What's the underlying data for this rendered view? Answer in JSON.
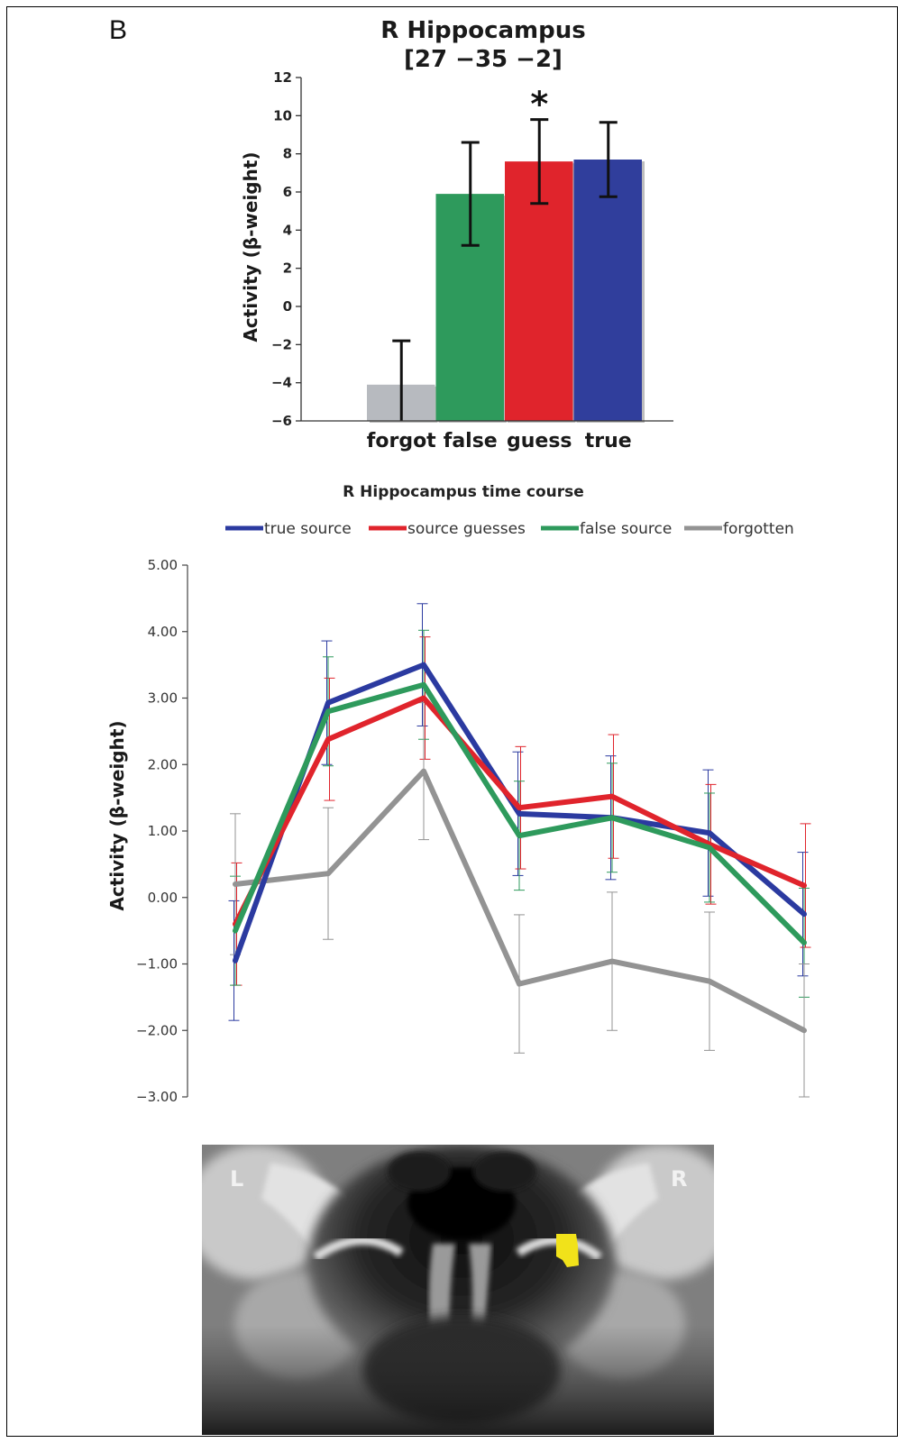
{
  "panel_label": "B",
  "chart_data": [
    {
      "type": "bar",
      "title": "R Hippocampus",
      "subtitle": "[27 −35 −2]",
      "ylabel": "Activity (β-weight)",
      "xlabel": "",
      "categories": [
        "forgot",
        "false",
        "guess",
        "true"
      ],
      "values": [
        -4.1,
        5.9,
        7.6,
        7.7
      ],
      "errors": [
        2.3,
        2.7,
        2.2,
        1.95
      ],
      "colors": [
        "#b7babf",
        "#2e9a5c",
        "#e0242c",
        "#303e9c"
      ],
      "ylim": [
        -6,
        12
      ],
      "yticks": [
        -6,
        -4,
        -2,
        0,
        2,
        4,
        6,
        8,
        10,
        12
      ],
      "ytick_labels": [
        "−6",
        "−4",
        "−2",
        "0",
        "2",
        "4",
        "6",
        "8",
        "10",
        "12"
      ],
      "annotation": {
        "text": "*",
        "category": "guess"
      },
      "grid": false
    },
    {
      "type": "line",
      "title": "R Hippocampus time course",
      "ylabel": "Activity (β-weight)",
      "xlabel": "",
      "x": [
        1,
        2,
        3,
        4,
        5,
        6,
        7
      ],
      "ylim": [
        -3,
        5
      ],
      "yticks": [
        -3,
        -2,
        -1,
        0,
        1,
        2,
        3,
        4,
        5
      ],
      "ytick_labels": [
        "−3.00",
        "−2.00",
        "−1.00",
        "0.00",
        "1.00",
        "2.00",
        "3.00",
        "4.00",
        "5.00"
      ],
      "legend_position": "top",
      "grid": false,
      "series": [
        {
          "name": "true source",
          "color": "#2b3aa0",
          "values": [
            -0.95,
            2.93,
            3.5,
            1.26,
            1.2,
            0.97,
            -0.25
          ],
          "errors": [
            0.9,
            0.93,
            0.92,
            0.93,
            0.93,
            0.95,
            0.93
          ]
        },
        {
          "name": "source guesses",
          "color": "#e0242c",
          "values": [
            -0.4,
            2.38,
            3.0,
            1.35,
            1.52,
            0.8,
            0.18
          ],
          "errors": [
            0.92,
            0.92,
            0.92,
            0.92,
            0.93,
            0.9,
            0.93
          ]
        },
        {
          "name": "false source",
          "color": "#2e9a5c",
          "values": [
            -0.5,
            2.8,
            3.2,
            0.93,
            1.2,
            0.75,
            -0.68
          ],
          "errors": [
            0.82,
            0.82,
            0.82,
            0.82,
            0.82,
            0.82,
            0.82
          ]
        },
        {
          "name": "forgotten",
          "color": "#939393",
          "values": [
            0.2,
            0.36,
            1.9,
            -1.3,
            -0.96,
            -1.26,
            -2.0
          ],
          "errors": [
            1.06,
            0.99,
            1.03,
            1.04,
            1.04,
            1.04,
            1.0
          ]
        }
      ]
    }
  ],
  "brain_image": {
    "left_label": "L",
    "right_label": "R",
    "highlight_color": "#f1e21a"
  }
}
